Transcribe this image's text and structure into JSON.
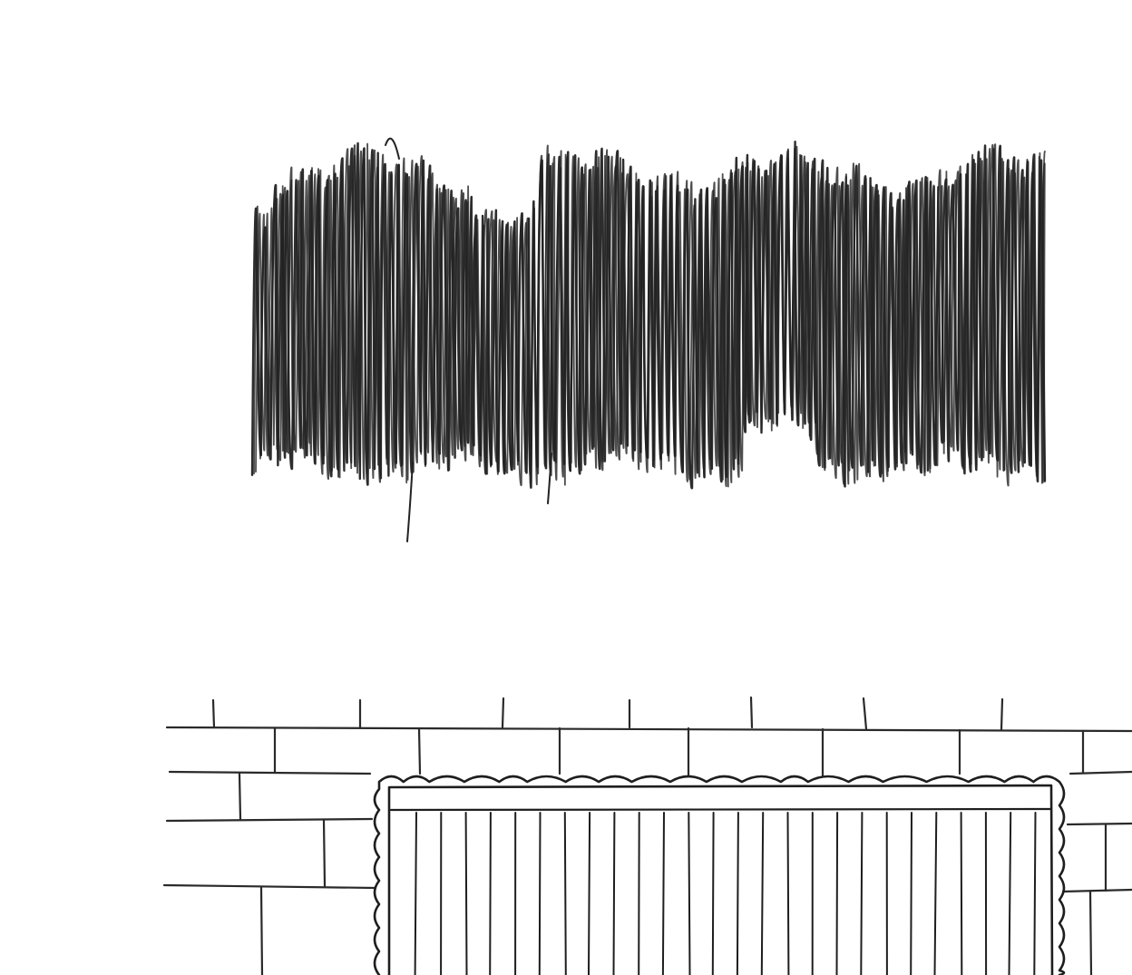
{
  "canvas": {
    "background_color": "#ffffff",
    "ink_color": "#222222",
    "line_color": "#2a2a2a"
  },
  "elements": {
    "scribble": "scribble-block",
    "wall": "brick-wall",
    "panel": "scalloped-panel"
  }
}
